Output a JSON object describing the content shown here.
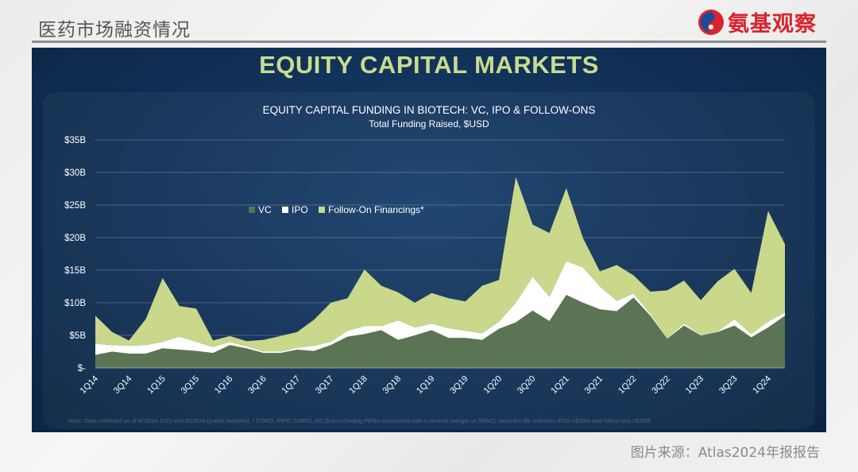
{
  "header": {
    "title": "医药市场融资情况",
    "brand": "氨基观察"
  },
  "slide": {
    "title": "EQUITY CAPITAL MARKETS"
  },
  "source_caption": "图片来源：Atlas2024年报报告",
  "colors": {
    "vc": "#5b7453",
    "ipo": "#ffffff",
    "follow_on": "#c9d88a",
    "background": "#102f55"
  },
  "chart_data": {
    "type": "area",
    "stacked": true,
    "title": "EQUITY CAPITAL FUNDING IN BIOTECH: VC, IPO & FOLLOW-ONS",
    "subtitle": "Total Funding Raised, $USD",
    "ylim": [
      0,
      35
    ],
    "yticks": [
      0,
      5,
      10,
      15,
      20,
      25,
      30,
      35
    ],
    "ytick_labels": [
      "$-",
      "$5B",
      "$10B",
      "$15B",
      "$20B",
      "$25B",
      "$30B",
      "$35B"
    ],
    "x": [
      "1Q14",
      "2Q14",
      "3Q14",
      "4Q14",
      "1Q15",
      "2Q15",
      "3Q15",
      "4Q15",
      "1Q16",
      "2Q16",
      "3Q16",
      "4Q16",
      "1Q17",
      "2Q17",
      "3Q17",
      "4Q17",
      "1Q18",
      "2Q18",
      "3Q18",
      "4Q18",
      "1Q19",
      "2Q19",
      "3Q19",
      "4Q19",
      "1Q20",
      "2Q20",
      "3Q20",
      "4Q20",
      "1Q21",
      "2Q21",
      "3Q21",
      "4Q21",
      "1Q22",
      "2Q22",
      "3Q22",
      "4Q22",
      "1Q23",
      "2Q23",
      "3Q23",
      "4Q23",
      "1Q24",
      "2Q24"
    ],
    "xtick_labels": [
      "1Q14",
      "3Q14",
      "1Q15",
      "3Q15",
      "1Q16",
      "3Q16",
      "1Q17",
      "3Q17",
      "1Q18",
      "3Q18",
      "1Q19",
      "3Q19",
      "1Q20",
      "3Q20",
      "1Q21",
      "3Q21",
      "1Q22",
      "3Q22",
      "1Q23",
      "3Q23",
      "1Q24"
    ],
    "legend_position": "upper-left-inside",
    "series": [
      {
        "name": "VC",
        "values": [
          2.0,
          2.5,
          2.2,
          2.2,
          3.0,
          2.8,
          2.6,
          2.3,
          3.5,
          3.0,
          2.3,
          2.3,
          2.8,
          2.6,
          3.5,
          4.8,
          5.2,
          5.8,
          4.3,
          5.0,
          5.8,
          4.6,
          4.6,
          4.3,
          6.0,
          7.0,
          8.8,
          7.2,
          11.2,
          10.0,
          9.0,
          8.7,
          10.8,
          8.0,
          4.5,
          6.5,
          5.0,
          5.5,
          6.5,
          4.7,
          6.2,
          8.0
        ]
      },
      {
        "name": "IPO",
        "values": [
          1.7,
          1.0,
          1.2,
          1.3,
          1.0,
          2.0,
          1.4,
          0.9,
          0.5,
          0.3,
          0.2,
          0.2,
          0.3,
          0.8,
          0.5,
          0.9,
          1.2,
          0.6,
          3.0,
          1.2,
          1.0,
          1.5,
          1.1,
          1.0,
          1.1,
          3.0,
          5.2,
          3.7,
          5.2,
          5.4,
          3.5,
          1.6,
          0.6,
          0.3,
          0.1,
          0.3,
          0.1,
          0.1,
          1.0,
          0.5,
          0.9,
          0.5
        ]
      },
      {
        "name": "Follow-On Financings*",
        "values": [
          4.3,
          2.0,
          0.8,
          4.0,
          9.8,
          4.7,
          5.1,
          1.0,
          0.9,
          0.8,
          1.8,
          2.4,
          2.4,
          4.0,
          6.0,
          5.0,
          8.7,
          6.2,
          4.3,
          3.8,
          4.7,
          4.6,
          4.5,
          7.3,
          6.4,
          19.3,
          8.0,
          9.8,
          11.2,
          4.5,
          2.3,
          5.5,
          2.8,
          3.4,
          7.3,
          6.6,
          5.3,
          7.7,
          7.7,
          6.3,
          17.0,
          10.5
        ]
      }
    ],
    "footnote": "Note: Data collected as of 8/28/24 (VC) and 9/16/24 (public markets).    * FOPO, PIPE, CMPO, RD (but excluding PIPEs concurrent with a reverse merger or SPAC). Includes life sciences IPOs >$30M and follow-ons >$20M"
  }
}
